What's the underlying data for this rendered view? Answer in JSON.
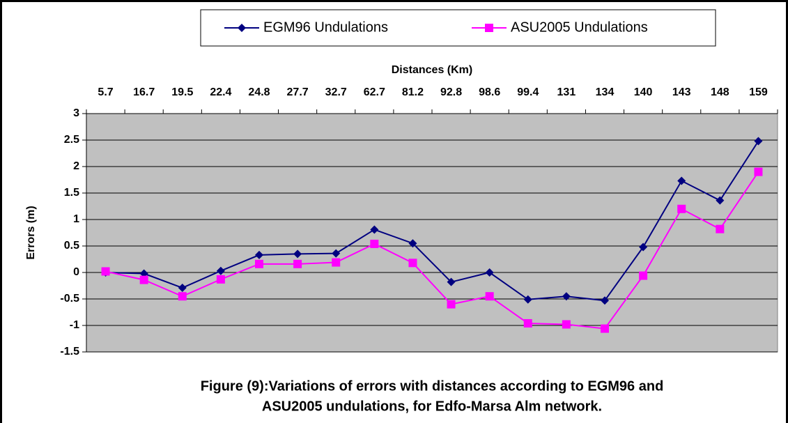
{
  "chart_data": {
    "type": "line",
    "x_label": "Distances (Km)",
    "y_label": "Errors (m)",
    "caption": [
      "Figure (9):Variations of errors with distances according to EGM96 and",
      "ASU2005 undulations, for Edfo-Marsa Alm network."
    ],
    "categories": [
      "5.7",
      "16.7",
      "19.5",
      "22.4",
      "24.8",
      "27.7",
      "32.7",
      "62.7",
      "81.2",
      "92.8",
      "98.6",
      "99.4",
      "131",
      "134",
      "140",
      "143",
      "148",
      "159"
    ],
    "series": [
      {
        "name": "EGM96 Undulations",
        "color": "#000080",
        "marker": "diamond",
        "values": [
          0,
          -0.02,
          -0.29,
          0.03,
          0.33,
          0.35,
          0.36,
          0.81,
          0.55,
          -0.18,
          0,
          -0.51,
          -0.45,
          -0.53,
          0.48,
          1.73,
          1.36,
          2.48
        ]
      },
      {
        "name": "ASU2005 Undulations",
        "color": "#ff00ff",
        "marker": "square",
        "values": [
          0.02,
          -0.14,
          -0.45,
          -0.13,
          0.16,
          0.16,
          0.19,
          0.54,
          0.18,
          -0.6,
          -0.45,
          -0.96,
          -0.98,
          -1.06,
          -0.06,
          1.2,
          0.82,
          1.9
        ]
      }
    ],
    "ylim": [
      -1.5,
      3
    ],
    "yticks": [
      3,
      2.5,
      2,
      1.5,
      1,
      0.5,
      0,
      -0.5,
      -1,
      -1.5
    ],
    "grid": true,
    "plot_background": "#c0c0c0"
  }
}
